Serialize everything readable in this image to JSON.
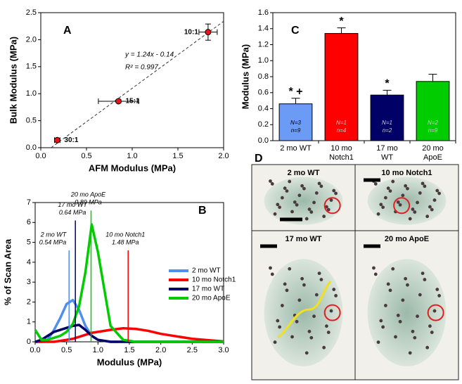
{
  "chart_data": [
    {
      "type": "scatter",
      "panel": "A",
      "ylabel": "Bulk Modulus (MPa)",
      "xlabel": "AFM Modulus (MPa)",
      "x": [
        0.18,
        0.85,
        1.83
      ],
      "y": [
        0.14,
        0.86,
        2.14
      ],
      "x_err": [
        0.03,
        0.22,
        0.1
      ],
      "y_err": [
        0.03,
        0.03,
        0.15
      ],
      "point_labels": [
        "30:1",
        "15:1",
        "10:1"
      ],
      "color": "#e8141b",
      "fit": {
        "slope": 1.24,
        "intercept": -0.14
      },
      "annotations": [
        "y = 1.24x - 0.14",
        "R² = 0.997"
      ],
      "xlim": [
        0,
        2
      ],
      "ylim": [
        0,
        2.5
      ],
      "xticks": [
        {
          "value": 0,
          "label": "0.0"
        },
        0.5,
        {
          "value": 1,
          "label": "1.0"
        },
        1.5,
        {
          "value": 2,
          "label": "2.0"
        }
      ],
      "yticks": [
        {
          "value": 0,
          "label": "0.0"
        },
        0.5,
        {
          "value": 1,
          "label": "1.0"
        },
        1.5,
        {
          "value": 2,
          "label": "2.0"
        },
        2.5
      ]
    },
    {
      "type": "line",
      "panel": "B",
      "ylabel": "% of Scan Area",
      "xlabel": "Modulus (MPa)",
      "x": [
        0,
        0.1,
        0.2,
        0.3,
        0.4,
        0.5,
        0.6,
        0.7,
        0.8,
        0.9,
        1.0,
        1.2,
        1.4,
        1.6,
        1.8,
        2.0,
        2.5,
        3.0
      ],
      "series": [
        {
          "name": "2 mo WT",
          "color": "#4f8ff0",
          "values": [
            0,
            0,
            0.1,
            0.6,
            1.2,
            1.9,
            2.1,
            1.6,
            0.8,
            0.3,
            0.1,
            0,
            0,
            0,
            0,
            0,
            0,
            0
          ]
        },
        {
          "name": "10 mo Notch1",
          "color": "#ff0000",
          "values": [
            0,
            0,
            0,
            0,
            0.05,
            0.1,
            0.15,
            0.25,
            0.35,
            0.45,
            0.5,
            0.6,
            0.68,
            0.65,
            0.55,
            0.4,
            0.15,
            0.02
          ]
        },
        {
          "name": "17 mo WT",
          "color": "#000066",
          "values": [
            0,
            0.1,
            0.3,
            0.5,
            0.6,
            0.7,
            0.8,
            0.85,
            0.6,
            0.3,
            0.1,
            0,
            0,
            0,
            0,
            0,
            0,
            0
          ]
        },
        {
          "name": "20 mo ApoE",
          "color": "#00cc00",
          "values": [
            0.6,
            0.1,
            0.1,
            0.2,
            0.3,
            0.5,
            0.9,
            1.8,
            3.5,
            5.9,
            4.5,
            0.8,
            0.1,
            0,
            0,
            0,
            0,
            0
          ]
        }
      ],
      "annotations": [
        {
          "lines": [
            "2 mo WT",
            "0.54 MPa"
          ],
          "x": 0.54,
          "y": 4.6,
          "color": "#4f8ff0"
        },
        {
          "lines": [
            "17 mo WT",
            "0.64 MPa"
          ],
          "x": 0.64,
          "y": 6.1,
          "color": "#000066"
        },
        {
          "lines": [
            "20 mo ApoE",
            "0.89 MPa"
          ],
          "x": 0.89,
          "y": 6.6,
          "color": "#00cc00"
        },
        {
          "lines": [
            "10 mo Notch1",
            "1.48 MPa"
          ],
          "x": 1.48,
          "y": 4.6,
          "color": "#ff0000"
        }
      ],
      "xlim": [
        0,
        3
      ],
      "ylim": [
        0,
        7
      ],
      "xticks": [
        {
          "value": 0,
          "label": "0.0"
        },
        0.5,
        {
          "value": 1,
          "label": "1.0"
        },
        1.5,
        {
          "value": 2,
          "label": "2.0"
        },
        2.5,
        {
          "value": 3,
          "label": "3.0"
        }
      ],
      "yticks": [
        0,
        1,
        2,
        3,
        4,
        5,
        6,
        7
      ]
    },
    {
      "type": "bar",
      "panel": "C",
      "ylabel": "Modulus (MPa)",
      "categories": [
        "2 mo WT",
        "10 mo Notch1",
        "17 mo WT",
        "20 mo ApoE"
      ],
      "values": [
        0.46,
        1.34,
        0.57,
        0.74
      ],
      "errors": [
        0.07,
        0.07,
        0.06,
        0.09
      ],
      "colors": [
        "#6b9bf5",
        "#ff0000",
        "#000066",
        "#00cc00"
      ],
      "bar_labels": [
        [
          "N=3",
          "n=9"
        ],
        [
          "N=1",
          "n=4"
        ],
        [
          "N=1",
          "n=2"
        ],
        [
          "N=2",
          "n=9"
        ]
      ],
      "significance": [
        "* +",
        "*",
        "*",
        null
      ],
      "ylim": [
        0,
        1.6
      ],
      "yticks": [
        {
          "value": 0,
          "label": "0.0"
        },
        0.2,
        0.4,
        0.6,
        0.8,
        {
          "value": 1,
          "label": "1.0"
        },
        1.2,
        1.4,
        1.6
      ]
    }
  ],
  "panel_d": {
    "label": "D",
    "images": [
      "2 mo WT",
      "10 mo Notch1",
      "17 mo WT",
      "20 mo ApoE"
    ]
  }
}
